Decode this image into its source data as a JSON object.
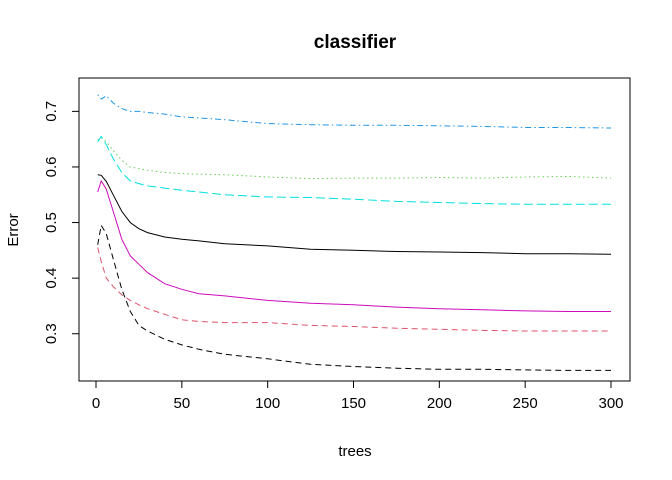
{
  "chart_data": {
    "type": "line",
    "title": "classifier",
    "xlabel": "trees",
    "ylabel": "Error",
    "xlim": [
      0,
      300
    ],
    "ylim": [
      0.215,
      0.76
    ],
    "x_ticks": [
      0,
      50,
      100,
      150,
      200,
      250,
      300
    ],
    "y_ticks": [
      0.3,
      0.4,
      0.5,
      0.6,
      0.7
    ],
    "grid": false,
    "legend": "none",
    "series": [
      {
        "color": "#000000",
        "dash": "solid",
        "x": [
          1,
          3,
          6,
          10,
          15,
          20,
          25,
          30,
          40,
          50,
          60,
          75,
          100,
          125,
          150,
          175,
          200,
          225,
          250,
          275,
          300
        ],
        "y": [
          0.586,
          0.585,
          0.574,
          0.55,
          0.52,
          0.5,
          0.489,
          0.482,
          0.474,
          0.47,
          0.467,
          0.462,
          0.458,
          0.452,
          0.45,
          0.448,
          0.447,
          0.446,
          0.444,
          0.444,
          0.443
        ]
      },
      {
        "color": "#df536b",
        "dash": "dashed",
        "x": [
          1,
          3,
          6,
          10,
          15,
          20,
          25,
          30,
          40,
          50,
          60,
          75,
          100,
          125,
          150,
          175,
          200,
          225,
          250,
          275,
          300
        ],
        "y": [
          0.455,
          0.43,
          0.4,
          0.385,
          0.37,
          0.36,
          0.352,
          0.345,
          0.335,
          0.325,
          0.322,
          0.32,
          0.32,
          0.315,
          0.313,
          0.31,
          0.308,
          0.306,
          0.305,
          0.305,
          0.305
        ]
      },
      {
        "color": "#61d04f",
        "dash": "dotted",
        "x": [
          1,
          3,
          6,
          10,
          15,
          20,
          25,
          30,
          40,
          50,
          60,
          75,
          100,
          125,
          150,
          175,
          200,
          225,
          250,
          275,
          300
        ],
        "y": [
          0.648,
          0.653,
          0.645,
          0.63,
          0.612,
          0.6,
          0.597,
          0.594,
          0.59,
          0.588,
          0.587,
          0.586,
          0.582,
          0.579,
          0.58,
          0.58,
          0.581,
          0.58,
          0.582,
          0.583,
          0.58
        ]
      },
      {
        "color": "#2297e6",
        "dash": "dashdot",
        "x": [
          1,
          3,
          6,
          10,
          15,
          20,
          25,
          30,
          40,
          50,
          60,
          75,
          100,
          125,
          150,
          175,
          200,
          225,
          250,
          275,
          300
        ],
        "y": [
          0.73,
          0.722,
          0.728,
          0.715,
          0.705,
          0.7,
          0.7,
          0.698,
          0.695,
          0.69,
          0.688,
          0.685,
          0.678,
          0.676,
          0.675,
          0.675,
          0.674,
          0.673,
          0.671,
          0.671,
          0.67
        ]
      },
      {
        "color": "#00e0e0",
        "dash": "longdash",
        "x": [
          1,
          3,
          6,
          10,
          15,
          20,
          25,
          30,
          40,
          50,
          60,
          75,
          100,
          125,
          150,
          175,
          200,
          225,
          250,
          275,
          300
        ],
        "y": [
          0.645,
          0.655,
          0.64,
          0.615,
          0.59,
          0.575,
          0.57,
          0.566,
          0.562,
          0.558,
          0.555,
          0.55,
          0.546,
          0.545,
          0.542,
          0.538,
          0.536,
          0.534,
          0.533,
          0.533,
          0.533
        ]
      },
      {
        "color": "#cd0bbc",
        "dash": "solid",
        "x": [
          1,
          3,
          6,
          10,
          15,
          20,
          25,
          30,
          40,
          50,
          60,
          75,
          100,
          125,
          150,
          175,
          200,
          225,
          250,
          275,
          300
        ],
        "y": [
          0.555,
          0.575,
          0.56,
          0.52,
          0.47,
          0.44,
          0.425,
          0.41,
          0.39,
          0.38,
          0.372,
          0.368,
          0.36,
          0.355,
          0.352,
          0.348,
          0.345,
          0.343,
          0.341,
          0.34,
          0.34
        ]
      },
      {
        "color": "#000000",
        "dash": "dashed",
        "x": [
          1,
          3,
          6,
          10,
          15,
          20,
          25,
          30,
          40,
          50,
          60,
          75,
          100,
          125,
          150,
          175,
          200,
          225,
          250,
          275,
          300
        ],
        "y": [
          0.46,
          0.495,
          0.48,
          0.435,
          0.38,
          0.34,
          0.315,
          0.305,
          0.29,
          0.28,
          0.272,
          0.263,
          0.255,
          0.245,
          0.241,
          0.238,
          0.236,
          0.236,
          0.235,
          0.234,
          0.234
        ]
      }
    ]
  }
}
